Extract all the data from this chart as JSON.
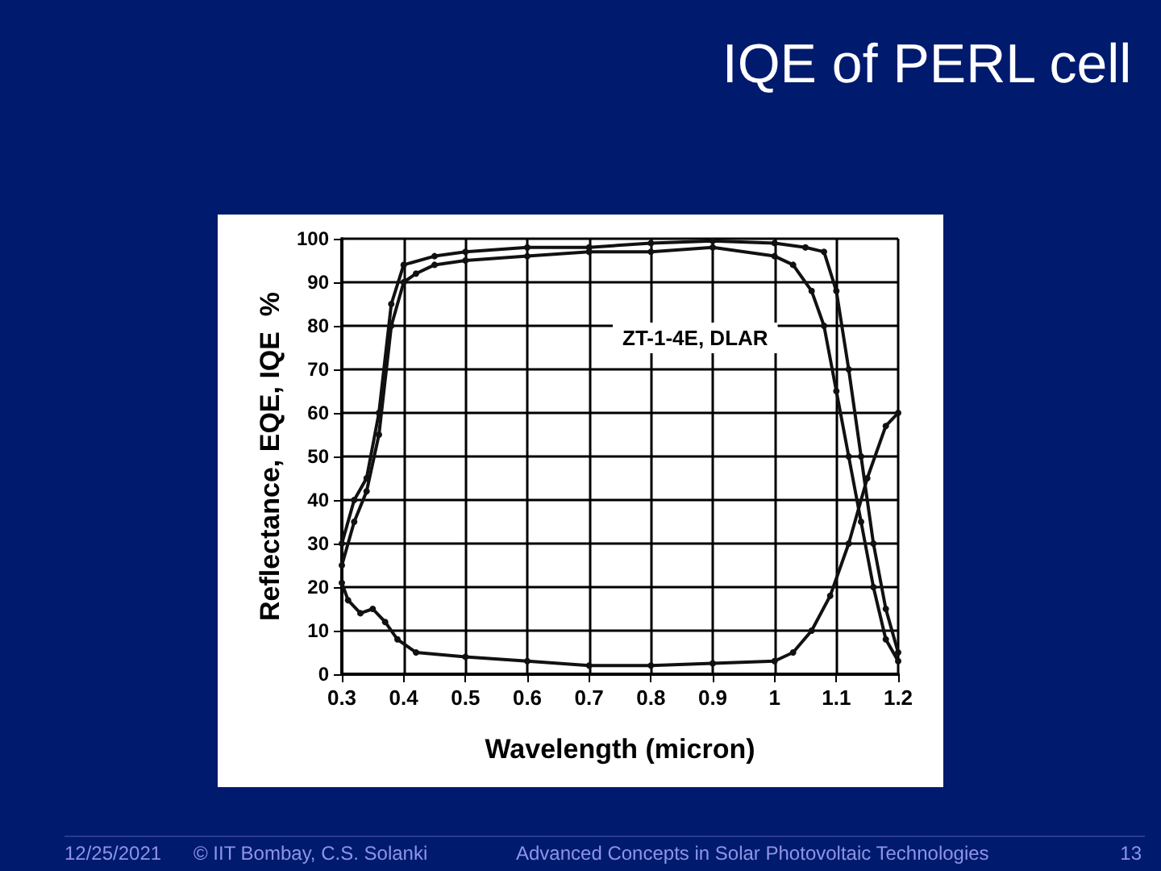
{
  "chart_data": {
    "type": "line",
    "title": "IQE of PERL cell",
    "xlabel": "Wavelength (micron)",
    "ylabel": "Reflectance, EQE, IQE  %",
    "annotations": [
      "ZT-1-4E, DLAR",
      "12/25/2021",
      "© IIT Bombay, C.S. Solanki",
      "Advanced Concepts in Solar Photovoltaic Technologies",
      "13"
    ],
    "series": [
      {
        "color": "#111111",
        "x": [
          0.3,
          0.32,
          0.34,
          0.36,
          0.38,
          0.4,
          0.45,
          0.5,
          0.6,
          0.7,
          0.8,
          0.9,
          1.0,
          1.05,
          1.08,
          1.1,
          1.12,
          1.14,
          1.16,
          1.18,
          1.2
        ],
        "values": [
          30,
          40,
          45,
          60,
          85,
          94,
          96,
          97,
          98,
          98,
          99,
          99.5,
          99,
          98,
          97,
          88,
          70,
          50,
          30,
          15,
          5
        ]
      },
      {
        "color": "#111111",
        "x": [
          0.3,
          0.32,
          0.34,
          0.36,
          0.38,
          0.4,
          0.42,
          0.45,
          0.5,
          0.6,
          0.7,
          0.8,
          0.9,
          1.0,
          1.03,
          1.06,
          1.08,
          1.1,
          1.12,
          1.14,
          1.16,
          1.18,
          1.2
        ],
        "values": [
          25,
          35,
          42,
          55,
          80,
          90,
          92,
          94,
          95,
          96,
          97,
          97,
          98,
          96,
          94,
          88,
          80,
          65,
          50,
          35,
          20,
          8,
          3
        ]
      },
      {
        "color": "#111111",
        "x": [
          0.3,
          0.31,
          0.33,
          0.35,
          0.37,
          0.39,
          0.42,
          0.5,
          0.6,
          0.7,
          0.8,
          0.9,
          1.0,
          1.03,
          1.06,
          1.09,
          1.12,
          1.15,
          1.18,
          1.2
        ],
        "values": [
          21,
          17,
          14,
          15,
          12,
          8,
          5,
          4,
          3,
          2,
          2,
          2.5,
          3,
          5,
          10,
          18,
          30,
          45,
          57,
          60
        ]
      }
    ],
    "xlim": [
      0.3,
      1.2
    ],
    "xticks": [
      0.3,
      0.4,
      0.5,
      0.6,
      0.7,
      0.8,
      0.9,
      1,
      1.1,
      1.2
    ],
    "ylim": [
      0,
      100
    ],
    "yticks": [
      0,
      10,
      20,
      30,
      40,
      50,
      60,
      70,
      80,
      90,
      100
    ],
    "grid": true,
    "marker": "circle",
    "line_style": "solid"
  }
}
